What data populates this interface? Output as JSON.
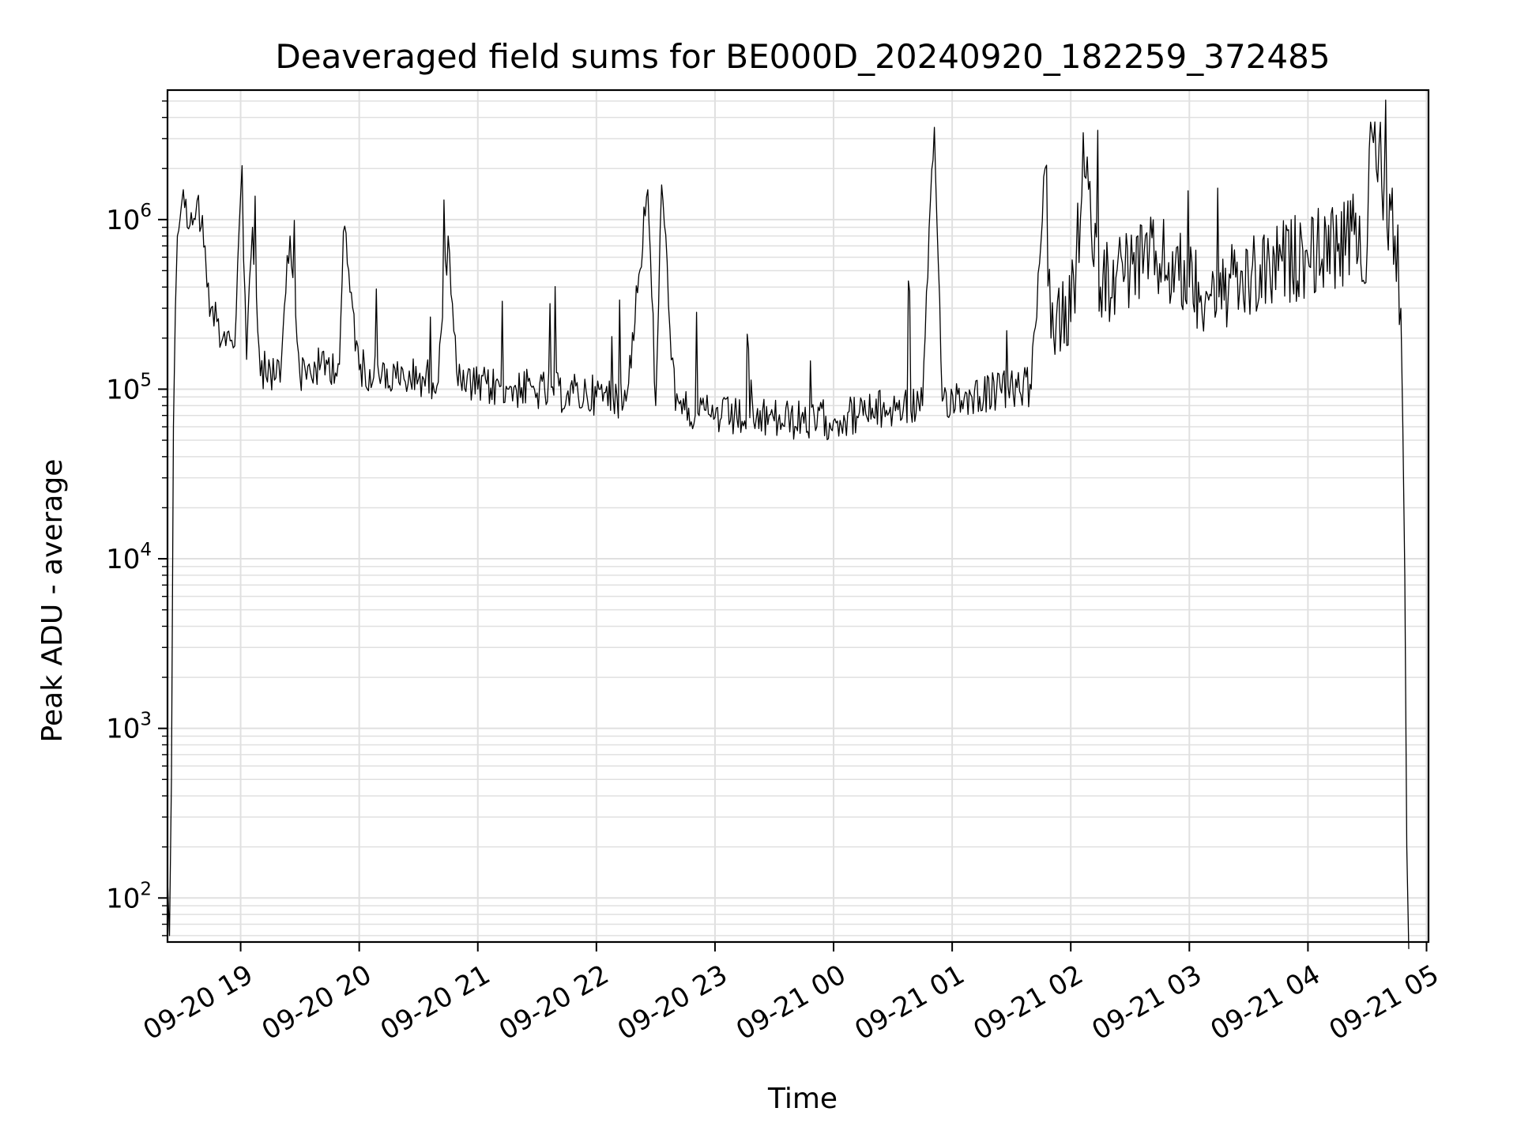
{
  "chart_data": {
    "type": "line",
    "title": "Deaveraged field sums for BE000D_20240920_182259_372485",
    "xlabel": "Time",
    "ylabel": "Peak ADU - average",
    "yscale": "log",
    "xlim": [
      "2024-09-20 18:23",
      "2024-09-21 05:01"
    ],
    "ylim": [
      55,
      5800000
    ],
    "grid": true,
    "line_color": "#000000",
    "grid_color": "#e0e0e0",
    "x_ticks": [
      {
        "label": "09-20 19",
        "value": "2024-09-20 19:00"
      },
      {
        "label": "09-20 20",
        "value": "2024-09-20 20:00"
      },
      {
        "label": "09-20 21",
        "value": "2024-09-20 21:00"
      },
      {
        "label": "09-20 22",
        "value": "2024-09-20 22:00"
      },
      {
        "label": "09-20 23",
        "value": "2024-09-20 23:00"
      },
      {
        "label": "09-21 00",
        "value": "2024-09-21 00:00"
      },
      {
        "label": "09-21 01",
        "value": "2024-09-21 01:00"
      },
      {
        "label": "09-21 02",
        "value": "2024-09-21 02:00"
      },
      {
        "label": "09-21 03",
        "value": "2024-09-21 03:00"
      },
      {
        "label": "09-21 04",
        "value": "2024-09-21 04:00"
      },
      {
        "label": "09-21 05",
        "value": "2024-09-21 05:00"
      }
    ],
    "y_ticks": [
      {
        "base": "10",
        "exp": "2",
        "value": 100
      },
      {
        "base": "10",
        "exp": "3",
        "value": 1000
      },
      {
        "base": "10",
        "exp": "4",
        "value": 10000
      },
      {
        "base": "10",
        "exp": "5",
        "value": 100000
      },
      {
        "base": "10",
        "exp": "6",
        "value": 1000000
      }
    ],
    "series": [
      {
        "values": [
          [
            "2024-09-20 18:23",
            130
          ],
          [
            "2024-09-20 18:24",
            60
          ],
          [
            "2024-09-20 18:25",
            500
          ],
          [
            "2024-09-20 18:26",
            60000
          ],
          [
            "2024-09-20 18:27",
            300000
          ],
          [
            "2024-09-20 18:28",
            800000
          ],
          [
            "2024-09-20 18:30",
            1200000
          ],
          [
            "2024-09-20 18:31",
            1500000
          ],
          [
            "2024-09-20 18:33",
            900000
          ],
          [
            "2024-09-20 18:35",
            1100000
          ],
          [
            "2024-09-20 18:37",
            1000000
          ],
          [
            "2024-09-20 18:38",
            1300000
          ],
          [
            "2024-09-20 18:40",
            900000
          ],
          [
            "2024-09-20 18:42",
            700000
          ],
          [
            "2024-09-20 18:43",
            400000
          ],
          [
            "2024-09-20 18:45",
            300000
          ],
          [
            "2024-09-20 18:48",
            250000
          ],
          [
            "2024-09-20 18:51",
            200000
          ],
          [
            "2024-09-20 18:54",
            220000
          ],
          [
            "2024-09-20 18:57",
            180000
          ],
          [
            "2024-09-20 19:00",
            1400000
          ],
          [
            "2024-09-20 19:03",
            150000
          ],
          [
            "2024-09-20 19:06",
            900000
          ],
          [
            "2024-09-20 19:10",
            120000
          ],
          [
            "2024-09-20 19:15",
            130000
          ],
          [
            "2024-09-20 19:20",
            110000
          ],
          [
            "2024-09-20 19:25",
            800000
          ],
          [
            "2024-09-20 19:30",
            120000
          ],
          [
            "2024-09-20 19:40",
            130000
          ],
          [
            "2024-09-20 19:50",
            140000
          ],
          [
            "2024-09-20 19:52",
            850000
          ],
          [
            "2024-09-20 20:00",
            130000
          ],
          [
            "2024-09-20 20:10",
            120000
          ],
          [
            "2024-09-20 20:20",
            110000
          ],
          [
            "2024-09-20 20:30",
            115000
          ],
          [
            "2024-09-20 20:40",
            110000
          ],
          [
            "2024-09-20 20:45",
            800000
          ],
          [
            "2024-09-20 20:50",
            105000
          ],
          [
            "2024-09-20 21:00",
            100000
          ],
          [
            "2024-09-20 21:15",
            100000
          ],
          [
            "2024-09-20 21:30",
            95000
          ],
          [
            "2024-09-20 21:45",
            92000
          ],
          [
            "2024-09-20 22:00",
            90000
          ],
          [
            "2024-09-20 22:15",
            85000
          ],
          [
            "2024-09-20 22:26",
            1500000
          ],
          [
            "2024-09-20 22:30",
            80000
          ],
          [
            "2024-09-20 22:33",
            1600000
          ],
          [
            "2024-09-20 22:40",
            75000
          ],
          [
            "2024-09-20 22:50",
            70000
          ],
          [
            "2024-09-20 23:00",
            68000
          ],
          [
            "2024-09-20 23:15",
            65000
          ],
          [
            "2024-09-20 23:30",
            65000
          ],
          [
            "2024-09-20 23:45",
            63000
          ],
          [
            "2024-09-21 00:00",
            65000
          ],
          [
            "2024-09-21 00:15",
            70000
          ],
          [
            "2024-09-21 00:30",
            75000
          ],
          [
            "2024-09-21 00:45",
            80000
          ],
          [
            "2024-09-21 00:51",
            3500000
          ],
          [
            "2024-09-21 00:55",
            85000
          ],
          [
            "2024-09-21 01:10",
            90000
          ],
          [
            "2024-09-21 01:25",
            95000
          ],
          [
            "2024-09-21 01:40",
            100000
          ],
          [
            "2024-09-21 01:47",
            2000000
          ],
          [
            "2024-09-21 01:50",
            200000
          ],
          [
            "2024-09-21 02:00",
            250000
          ],
          [
            "2024-09-21 02:07",
            1800000
          ],
          [
            "2024-09-21 02:15",
            400000
          ],
          [
            "2024-09-21 02:30",
            500000
          ],
          [
            "2024-09-21 02:45",
            550000
          ],
          [
            "2024-09-21 03:00",
            400000
          ],
          [
            "2024-09-21 03:15",
            350000
          ],
          [
            "2024-09-21 03:30",
            400000
          ],
          [
            "2024-09-21 03:45",
            500000
          ],
          [
            "2024-09-21 04:00",
            600000
          ],
          [
            "2024-09-21 04:15",
            650000
          ],
          [
            "2024-09-21 04:30",
            700000
          ],
          [
            "2024-09-21 04:31",
            2600000
          ],
          [
            "2024-09-21 04:36",
            2800000
          ],
          [
            "2024-09-21 04:40",
            900000
          ],
          [
            "2024-09-21 04:44",
            800000
          ],
          [
            "2024-09-21 04:47",
            300000
          ],
          [
            "2024-09-21 04:48",
            60000
          ],
          [
            "2024-09-21 04:49",
            8000
          ],
          [
            "2024-09-21 04:50",
            200
          ],
          [
            "2024-09-21 04:51",
            50
          ]
        ]
      }
    ]
  }
}
